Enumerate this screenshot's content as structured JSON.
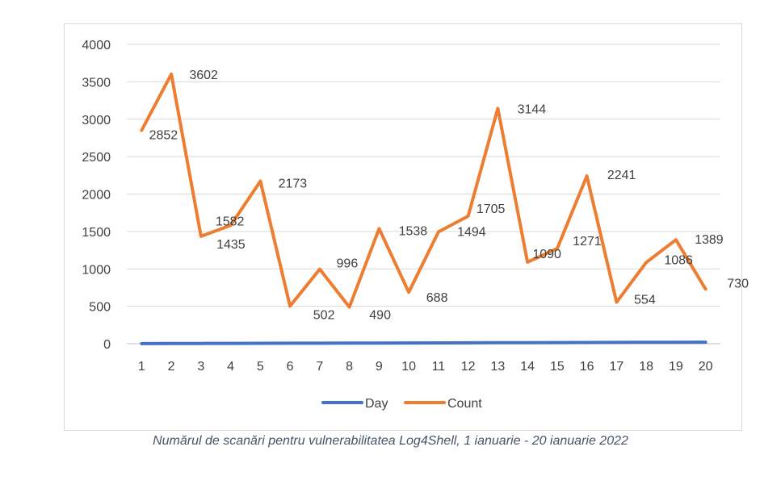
{
  "caption": "Numărul de scanări pentru vulnerabilitatea Log4Shell, 1 ianuarie - 20 ianuarie 2022",
  "chart_data": {
    "type": "line",
    "title": "",
    "xlabel": "",
    "ylabel": "",
    "categories": [
      "1",
      "2",
      "3",
      "4",
      "5",
      "6",
      "7",
      "8",
      "9",
      "10",
      "11",
      "12",
      "13",
      "14",
      "15",
      "16",
      "17",
      "18",
      "19",
      "20"
    ],
    "ylim": [
      0,
      4000
    ],
    "yticks": [
      0,
      500,
      1000,
      1500,
      2000,
      2500,
      3000,
      3500,
      4000
    ],
    "grid": true,
    "legend_position": "bottom",
    "series": [
      {
        "name": "Day",
        "color": "#4472c4",
        "values": [
          1,
          2,
          3,
          4,
          5,
          6,
          7,
          8,
          9,
          10,
          11,
          12,
          13,
          14,
          15,
          16,
          17,
          18,
          19,
          20
        ],
        "labels": false
      },
      {
        "name": "Count",
        "color": "#ed7d31",
        "values": [
          2852,
          3602,
          1435,
          1582,
          2173,
          502,
          996,
          490,
          1538,
          688,
          1494,
          1705,
          3144,
          1090,
          1271,
          2241,
          554,
          1086,
          1389,
          730
        ],
        "labels": true
      }
    ]
  }
}
